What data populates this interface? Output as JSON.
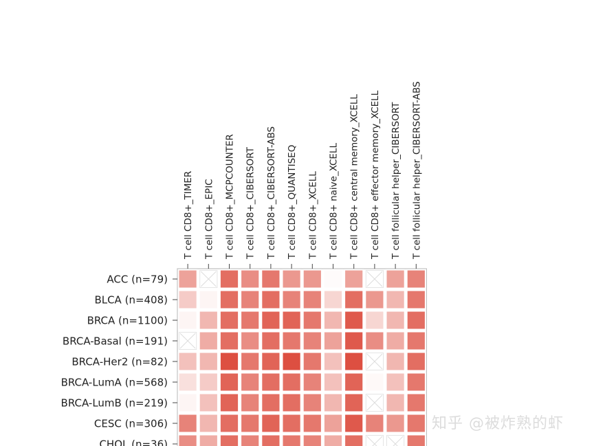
{
  "chart_data": {
    "type": "heatmap",
    "columns": [
      "T cell CD8+_TIMER",
      "T cell CD8+_EPIC",
      "T cell CD8+_MCPCOUNTER",
      "T cell CD8+_CIBERSORT",
      "T cell CD8+_CIBERSORT-ABS",
      "T cell CD8+_QUANTISEQ",
      "T cell CD8+_XCELL",
      "T cell CD8+ naive_XCELL",
      "T cell CD8+ central memory_XCELL",
      "T cell CD8+ effector memory_XCELL",
      "T cell follicular helper_CIBERSORT",
      "T cell follicular helper_CIBERSORT-ABS"
    ],
    "rows": [
      "ACC (n=79)",
      "BLCA (n=408)",
      "BRCA (n=1100)",
      "BRCA-Basal (n=191)",
      "BRCA-Her2 (n=82)",
      "BRCA-LumA (n=568)",
      "BRCA-LumB (n=219)",
      "CESC (n=306)",
      "CHOL (n=36)"
    ],
    "values": [
      [
        0.45,
        null,
        0.7,
        0.55,
        0.65,
        0.5,
        0.5,
        0.02,
        0.45,
        null,
        0.45,
        0.6
      ],
      [
        0.25,
        0.05,
        0.7,
        0.6,
        0.7,
        0.6,
        0.6,
        0.2,
        0.7,
        0.5,
        0.35,
        0.65
      ],
      [
        0.05,
        0.35,
        0.7,
        0.65,
        0.75,
        0.75,
        0.65,
        0.35,
        0.8,
        0.2,
        0.35,
        0.7
      ],
      [
        null,
        0.4,
        0.7,
        0.55,
        0.7,
        0.65,
        0.6,
        0.45,
        0.8,
        0.55,
        0.4,
        0.65
      ],
      [
        0.3,
        0.35,
        0.85,
        0.65,
        0.75,
        0.85,
        0.65,
        0.3,
        0.85,
        null,
        0.35,
        0.7
      ],
      [
        0.15,
        0.25,
        0.75,
        0.6,
        0.7,
        0.7,
        0.6,
        0.3,
        0.75,
        0.03,
        0.3,
        0.65
      ],
      [
        0.05,
        0.3,
        0.75,
        0.6,
        0.7,
        0.7,
        0.6,
        0.35,
        0.75,
        null,
        0.35,
        0.65
      ],
      [
        0.6,
        0.35,
        0.7,
        0.65,
        0.75,
        0.7,
        0.65,
        0.45,
        0.8,
        0.6,
        0.5,
        0.65
      ],
      [
        0.55,
        0.4,
        0.7,
        0.6,
        0.7,
        0.65,
        0.6,
        0.4,
        0.7,
        null,
        null,
        0.65
      ]
    ],
    "missing_marker": "cross",
    "colormap": {
      "low": "#ffffff",
      "high": "#d7301f"
    },
    "grid_color": "#ffffff"
  },
  "watermark": "知乎 @被炸熟的虾"
}
